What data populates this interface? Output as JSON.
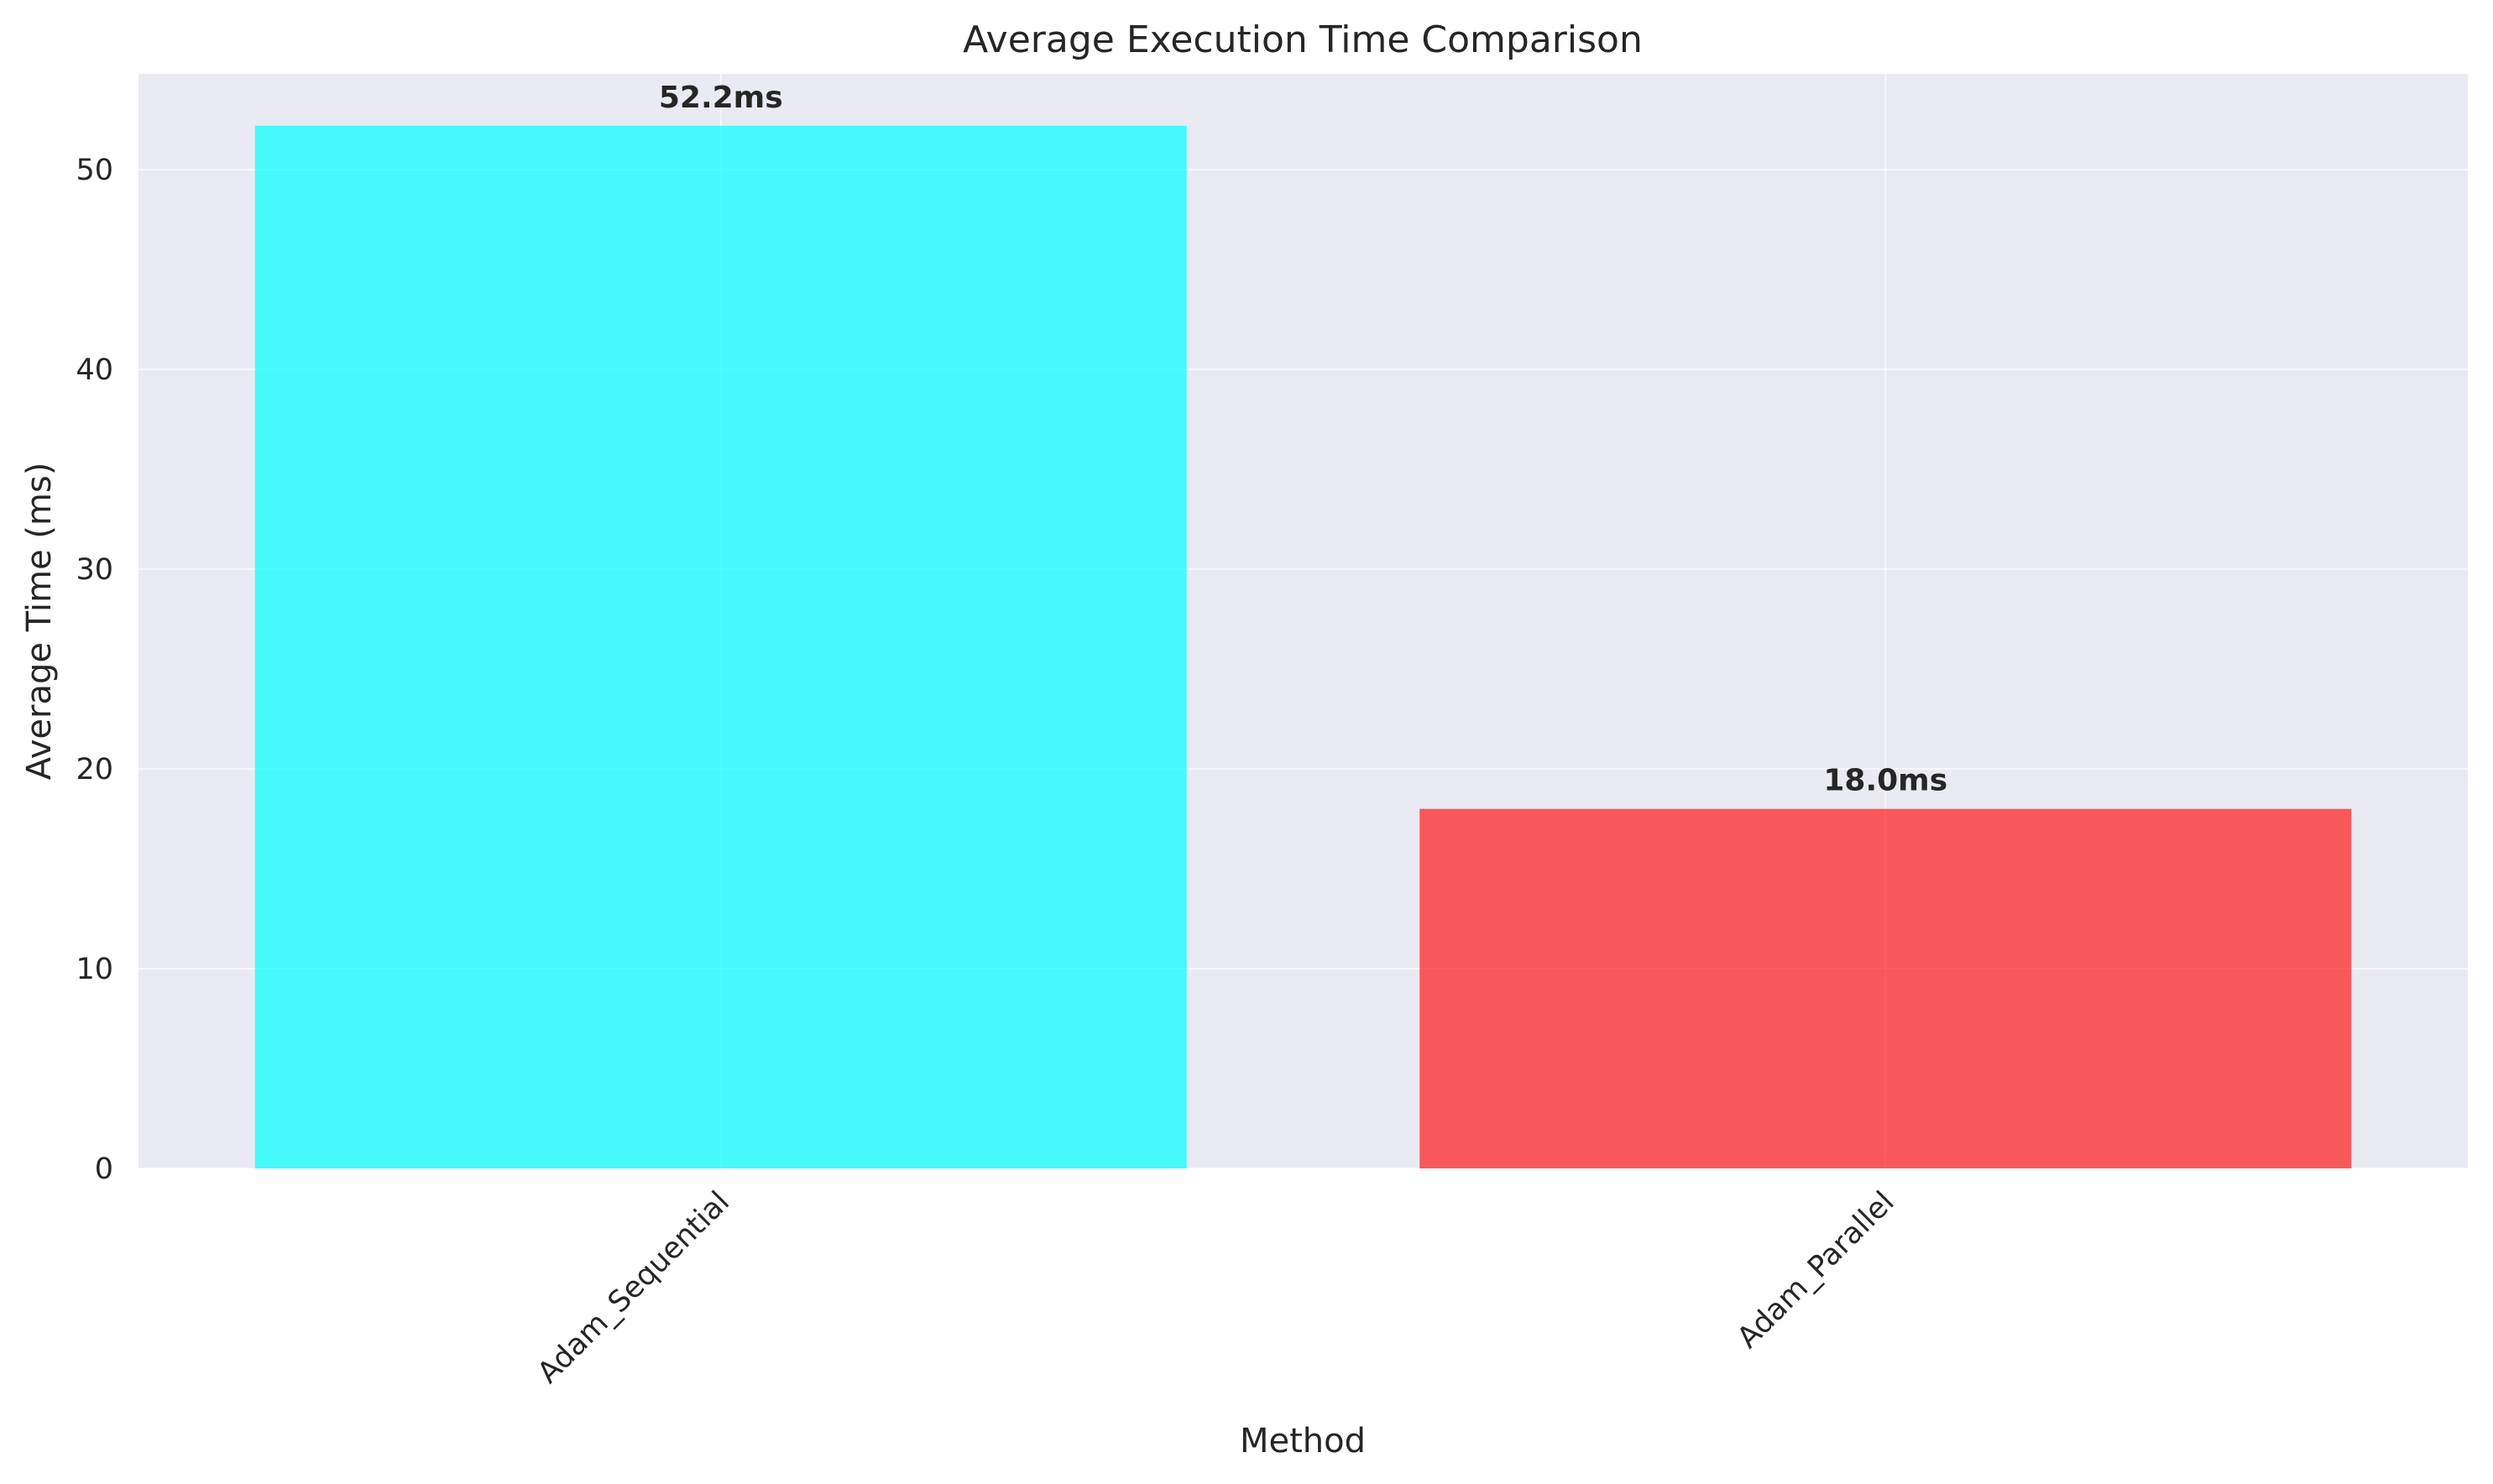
{
  "chart_data": {
    "type": "bar",
    "title": "Average Execution Time Comparison",
    "xlabel": "Method",
    "ylabel": "Average Time (ms)",
    "categories": [
      "Adam_Sequential",
      "Adam_Parallel"
    ],
    "values": [
      52.2,
      18.0
    ],
    "value_labels": [
      "52.2ms",
      "18.0ms"
    ],
    "colors": [
      "#00ffff",
      "#ff1a1a"
    ],
    "ylim": [
      0,
      54.8
    ],
    "yticks": [
      0,
      10,
      20,
      30,
      40,
      50
    ],
    "grid": true,
    "background": "#eaeaf2"
  }
}
